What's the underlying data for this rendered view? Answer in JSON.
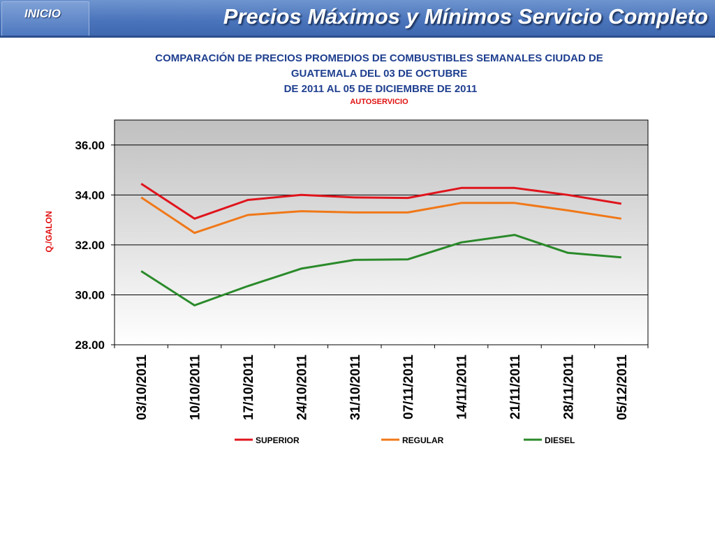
{
  "header": {
    "inicio_label": "INICIO",
    "title": "Precios Máximos y Mínimos Servicio Completo"
  },
  "chart_data": {
    "type": "line",
    "title_lines": [
      "COMPARACIÓN DE PRECIOS PROMEDIOS DE COMBUSTIBLES SEMANALES CIUDAD DE",
      "GUATEMALA DEL 03 DE OCTUBRE",
      "DE 2011 AL 05 DE DICIEMBRE DE 2011"
    ],
    "subtitle": "AUTOSERVICIO",
    "ylabel": "Q./GALON",
    "xlabel": "",
    "ylim": [
      28,
      37
    ],
    "yticks": [
      "28.00",
      "30.00",
      "32.00",
      "34.00",
      "36.00"
    ],
    "categories": [
      "03/10/2011",
      "10/10/2011",
      "17/10/2011",
      "24/10/2011",
      "31/10/2011",
      "07/11/2011",
      "14/11/2011",
      "21/11/2011",
      "28/11/2011",
      "05/12/2011"
    ],
    "series": [
      {
        "name": "SUPERIOR",
        "color": "#e0141c",
        "values": [
          34.45,
          33.05,
          33.8,
          34.0,
          33.9,
          33.88,
          34.28,
          34.28,
          34.0,
          33.65
        ]
      },
      {
        "name": "REGULAR",
        "color": "#f07818",
        "values": [
          33.9,
          32.48,
          33.2,
          33.35,
          33.3,
          33.3,
          33.68,
          33.68,
          33.38,
          33.05
        ]
      },
      {
        "name": "DIESEL",
        "color": "#2a8a2a",
        "values": [
          30.95,
          29.58,
          30.35,
          31.05,
          31.4,
          31.42,
          32.1,
          32.4,
          31.68,
          31.5
        ]
      }
    ],
    "grid": true,
    "legend_position": "bottom"
  }
}
